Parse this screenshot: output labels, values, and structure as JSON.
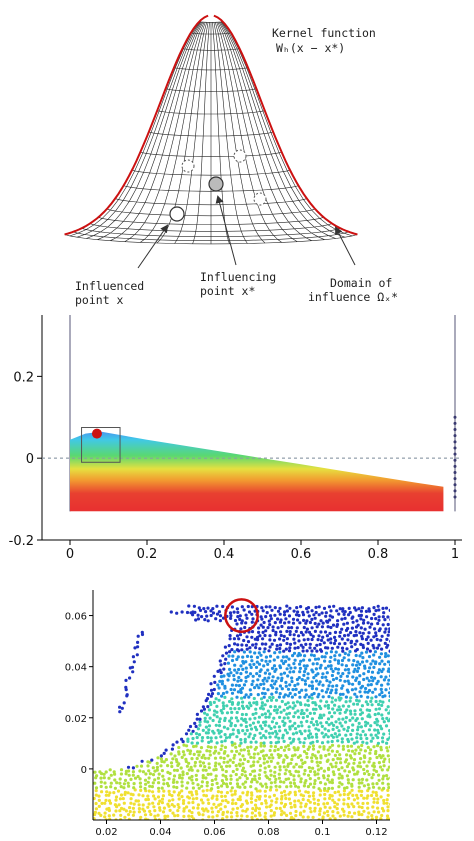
{
  "kernel": {
    "title_line1": "Kernel function",
    "title_line2": "Wₕ(x − x*)",
    "influenced_line1": "Influenced",
    "influenced_line2": "point x",
    "influencing_line1": "Influencing",
    "influencing_line2": "point x*",
    "domain_line1": "Domain of",
    "domain_line2": "influence Ωₓ*",
    "mesh_color": "#222222",
    "outline_color": "#cc1111"
  },
  "chart_data": [
    {
      "type": "heatmap",
      "x_ticks": [
        "0",
        "0.2",
        "0.4",
        "0.6",
        "0.8",
        "1"
      ],
      "y_ticks": [
        "0.2",
        "0",
        "-0.2"
      ],
      "xlim": [
        0,
        1
      ],
      "ylim": [
        -0.2,
        0.35
      ],
      "free_surface": {
        "x": [
          0.0,
          0.04,
          0.08,
          0.11,
          0.2,
          0.3,
          0.4,
          0.5,
          0.6,
          0.7,
          0.8,
          0.9,
          0.97
        ],
        "y": [
          0.045,
          0.06,
          0.065,
          0.06,
          0.045,
          0.03,
          0.015,
          0.0,
          -0.015,
          -0.03,
          -0.045,
          -0.06,
          -0.07
        ]
      },
      "marker": {
        "x": 0.07,
        "y": 0.06,
        "color": "#cc1111"
      },
      "zoom_box": {
        "x": [
          0.03,
          0.13
        ],
        "y": [
          -0.01,
          0.075
        ]
      },
      "colors": [
        "#e83030",
        "#f0a030",
        "#e8e040",
        "#50d060",
        "#40c8e0",
        "#4080f0"
      ]
    },
    {
      "type": "scatter",
      "x_ticks": [
        "0.02",
        "0.04",
        "0.06",
        "0.08",
        "0.1",
        "0.12"
      ],
      "y_ticks": [
        "0.06",
        "0.04",
        "0.02",
        "0"
      ],
      "xlim": [
        0.015,
        0.125
      ],
      "ylim": [
        -0.02,
        0.07
      ],
      "highlight_circle": {
        "x": 0.07,
        "y": 0.06,
        "r": 0.006,
        "color": "#cc1111"
      },
      "colors": [
        "#2030c0",
        "#2090e0",
        "#40d0b0",
        "#b0e040",
        "#f0e030"
      ]
    }
  ]
}
